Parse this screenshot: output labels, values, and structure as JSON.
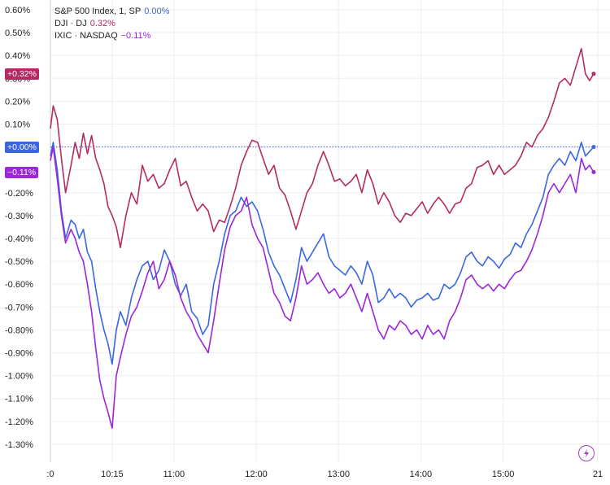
{
  "legend": [
    {
      "label": "S&P 500 Index, 1, SP",
      "value": "0.00%",
      "color": "#3a67e0"
    },
    {
      "label": "DJI · DJ",
      "value": "0.32%",
      "color": "#b42b63"
    },
    {
      "label": "IXIC · NASDAQ",
      "value": "−0.11%",
      "color": "#9c27d9"
    }
  ],
  "price_tags": [
    {
      "text": "+0.32%",
      "color": "#b42b63",
      "value": 0.32
    },
    {
      "text": "+0.00%",
      "color": "#3a67e0",
      "value": 0.0
    },
    {
      "text": "−0.11%",
      "color": "#9c27d9",
      "value": -0.11
    }
  ],
  "logo_icon": "lightning-bolt-icon",
  "chart_data": {
    "type": "line",
    "title": "",
    "xlabel": "",
    "ylabel": "",
    "ylim": [
      -1.35,
      0.62
    ],
    "y_ticks": [
      "0.60%",
      "0.50%",
      "0.40%",
      "0.30%",
      "0.20%",
      "0.10%",
      "0.00%",
      "-0.10%",
      "-0.20%",
      "-0.30%",
      "-0.40%",
      "-0.50%",
      "-0.60%",
      "-0.70%",
      "-0.80%",
      "-0.90%",
      "-1.00%",
      "-1.10%",
      "-1.20%",
      "-1.30%"
    ],
    "y_tick_values": [
      0.6,
      0.5,
      0.4,
      0.3,
      0.2,
      0.1,
      0.0,
      -0.1,
      -0.2,
      -0.3,
      -0.4,
      -0.5,
      -0.6,
      -0.7,
      -0.8,
      -0.9,
      -1.0,
      -1.1,
      -1.2,
      -1.3
    ],
    "x_ticks": [
      ":0",
      "10:15",
      "11:00",
      "12:00",
      "13:00",
      "14:00",
      "15:00",
      "21"
    ],
    "x_tick_minutes": [
      570,
      615,
      660,
      720,
      780,
      840,
      900,
      969
    ],
    "x_range_minutes": [
      570,
      969
    ],
    "grid": true,
    "baseline": 0.0,
    "series": [
      {
        "name": "DJI · DJ",
        "color": "#b42b63",
        "x": [
          570,
          572,
          575,
          578,
          581,
          585,
          588,
          591,
          594,
          597,
          600,
          603,
          606,
          609,
          612,
          615,
          618,
          621,
          625,
          629,
          633,
          637,
          641,
          645,
          649,
          653,
          657,
          661,
          665,
          669,
          673,
          677,
          681,
          685,
          689,
          693,
          697,
          701,
          705,
          709,
          713,
          717,
          721,
          725,
          729,
          733,
          737,
          741,
          745,
          749,
          753,
          757,
          761,
          765,
          769,
          773,
          777,
          781,
          785,
          789,
          793,
          797,
          801,
          805,
          809,
          813,
          817,
          821,
          825,
          829,
          833,
          837,
          841,
          845,
          849,
          853,
          857,
          861,
          865,
          869,
          873,
          877,
          881,
          885,
          889,
          893,
          897,
          901,
          905,
          909,
          913,
          917,
          921,
          925,
          929,
          933,
          937,
          941,
          945,
          949,
          953,
          957,
          960,
          963,
          966
        ],
        "y": [
          0.08,
          0.18,
          0.12,
          -0.05,
          -0.2,
          -0.08,
          0.02,
          -0.05,
          0.06,
          -0.03,
          0.05,
          -0.05,
          -0.1,
          -0.16,
          -0.26,
          -0.3,
          -0.35,
          -0.44,
          -0.3,
          -0.2,
          -0.25,
          -0.08,
          -0.15,
          -0.12,
          -0.18,
          -0.16,
          -0.1,
          -0.05,
          -0.17,
          -0.15,
          -0.22,
          -0.28,
          -0.25,
          -0.28,
          -0.37,
          -0.32,
          -0.33,
          -0.26,
          -0.18,
          -0.08,
          -0.02,
          0.03,
          0.02,
          -0.05,
          -0.12,
          -0.08,
          -0.18,
          -0.21,
          -0.28,
          -0.36,
          -0.28,
          -0.2,
          -0.16,
          -0.08,
          -0.02,
          -0.08,
          -0.15,
          -0.14,
          -0.17,
          -0.15,
          -0.12,
          -0.2,
          -0.1,
          -0.16,
          -0.25,
          -0.2,
          -0.24,
          -0.3,
          -0.33,
          -0.29,
          -0.3,
          -0.27,
          -0.24,
          -0.29,
          -0.25,
          -0.22,
          -0.25,
          -0.29,
          -0.25,
          -0.24,
          -0.18,
          -0.16,
          -0.09,
          -0.08,
          -0.06,
          -0.12,
          -0.08,
          -0.12,
          -0.1,
          -0.08,
          -0.04,
          0.02,
          0.0,
          0.05,
          0.08,
          0.13,
          0.2,
          0.28,
          0.3,
          0.27,
          0.35,
          0.43,
          0.32,
          0.29,
          0.32
        ]
      },
      {
        "name": "S&P 500 Index, 1, SP",
        "color": "#3a67e0",
        "x": [
          570,
          572,
          575,
          578,
          581,
          585,
          588,
          591,
          594,
          597,
          600,
          603,
          606,
          609,
          612,
          615,
          618,
          621,
          625,
          629,
          633,
          637,
          641,
          645,
          649,
          653,
          657,
          661,
          665,
          669,
          673,
          677,
          681,
          685,
          689,
          693,
          697,
          701,
          705,
          709,
          713,
          717,
          721,
          725,
          729,
          733,
          737,
          741,
          745,
          749,
          753,
          757,
          761,
          765,
          769,
          773,
          777,
          781,
          785,
          789,
          793,
          797,
          801,
          805,
          809,
          813,
          817,
          821,
          825,
          829,
          833,
          837,
          841,
          845,
          849,
          853,
          857,
          861,
          865,
          869,
          873,
          877,
          881,
          885,
          889,
          893,
          897,
          901,
          905,
          909,
          913,
          917,
          921,
          925,
          929,
          933,
          937,
          941,
          945,
          949,
          953,
          957,
          960,
          963,
          966
        ],
        "y": [
          -0.04,
          0.02,
          -0.1,
          -0.28,
          -0.4,
          -0.32,
          -0.34,
          -0.4,
          -0.36,
          -0.46,
          -0.5,
          -0.62,
          -0.72,
          -0.8,
          -0.86,
          -0.95,
          -0.8,
          -0.72,
          -0.78,
          -0.66,
          -0.58,
          -0.52,
          -0.5,
          -0.58,
          -0.54,
          -0.45,
          -0.5,
          -0.6,
          -0.65,
          -0.6,
          -0.72,
          -0.75,
          -0.82,
          -0.78,
          -0.6,
          -0.5,
          -0.38,
          -0.3,
          -0.28,
          -0.22,
          -0.26,
          -0.24,
          -0.28,
          -0.36,
          -0.46,
          -0.52,
          -0.56,
          -0.62,
          -0.68,
          -0.58,
          -0.44,
          -0.5,
          -0.46,
          -0.42,
          -0.38,
          -0.48,
          -0.52,
          -0.54,
          -0.56,
          -0.52,
          -0.55,
          -0.6,
          -0.5,
          -0.56,
          -0.68,
          -0.66,
          -0.62,
          -0.66,
          -0.64,
          -0.66,
          -0.7,
          -0.67,
          -0.66,
          -0.64,
          -0.67,
          -0.66,
          -0.6,
          -0.62,
          -0.6,
          -0.55,
          -0.48,
          -0.46,
          -0.5,
          -0.52,
          -0.48,
          -0.5,
          -0.53,
          -0.49,
          -0.47,
          -0.42,
          -0.44,
          -0.38,
          -0.34,
          -0.28,
          -0.22,
          -0.12,
          -0.08,
          -0.05,
          -0.08,
          -0.02,
          -0.06,
          0.02,
          -0.04,
          -0.02,
          0.0
        ]
      },
      {
        "name": "IXIC · NASDAQ",
        "color": "#9c27d9",
        "x": [
          570,
          572,
          575,
          578,
          581,
          585,
          588,
          591,
          594,
          597,
          600,
          603,
          606,
          609,
          612,
          615,
          618,
          621,
          625,
          629,
          633,
          637,
          641,
          645,
          649,
          653,
          657,
          661,
          665,
          669,
          673,
          677,
          681,
          685,
          689,
          693,
          697,
          701,
          705,
          709,
          713,
          717,
          721,
          725,
          729,
          733,
          737,
          741,
          745,
          749,
          753,
          757,
          761,
          765,
          769,
          773,
          777,
          781,
          785,
          789,
          793,
          797,
          801,
          805,
          809,
          813,
          817,
          821,
          825,
          829,
          833,
          837,
          841,
          845,
          849,
          853,
          857,
          861,
          865,
          869,
          873,
          877,
          881,
          885,
          889,
          893,
          897,
          901,
          905,
          909,
          913,
          917,
          921,
          925,
          929,
          933,
          937,
          941,
          945,
          949,
          953,
          957,
          960,
          963,
          966
        ],
        "y": [
          -0.06,
          0.0,
          -0.14,
          -0.3,
          -0.42,
          -0.36,
          -0.4,
          -0.46,
          -0.5,
          -0.6,
          -0.72,
          -0.88,
          -1.02,
          -1.1,
          -1.16,
          -1.23,
          -1.0,
          -0.92,
          -0.82,
          -0.74,
          -0.7,
          -0.63,
          -0.55,
          -0.5,
          -0.62,
          -0.58,
          -0.5,
          -0.56,
          -0.66,
          -0.72,
          -0.76,
          -0.82,
          -0.86,
          -0.9,
          -0.76,
          -0.6,
          -0.45,
          -0.35,
          -0.3,
          -0.28,
          -0.22,
          -0.34,
          -0.4,
          -0.44,
          -0.54,
          -0.64,
          -0.68,
          -0.74,
          -0.76,
          -0.66,
          -0.52,
          -0.6,
          -0.58,
          -0.55,
          -0.6,
          -0.64,
          -0.62,
          -0.66,
          -0.64,
          -0.6,
          -0.66,
          -0.72,
          -0.64,
          -0.72,
          -0.8,
          -0.84,
          -0.78,
          -0.8,
          -0.76,
          -0.78,
          -0.82,
          -0.8,
          -0.84,
          -0.78,
          -0.82,
          -0.8,
          -0.84,
          -0.76,
          -0.72,
          -0.66,
          -0.58,
          -0.56,
          -0.6,
          -0.62,
          -0.6,
          -0.63,
          -0.6,
          -0.62,
          -0.58,
          -0.55,
          -0.54,
          -0.5,
          -0.45,
          -0.38,
          -0.3,
          -0.2,
          -0.16,
          -0.2,
          -0.16,
          -0.12,
          -0.2,
          -0.05,
          -0.1,
          -0.08,
          -0.11
        ]
      }
    ]
  }
}
